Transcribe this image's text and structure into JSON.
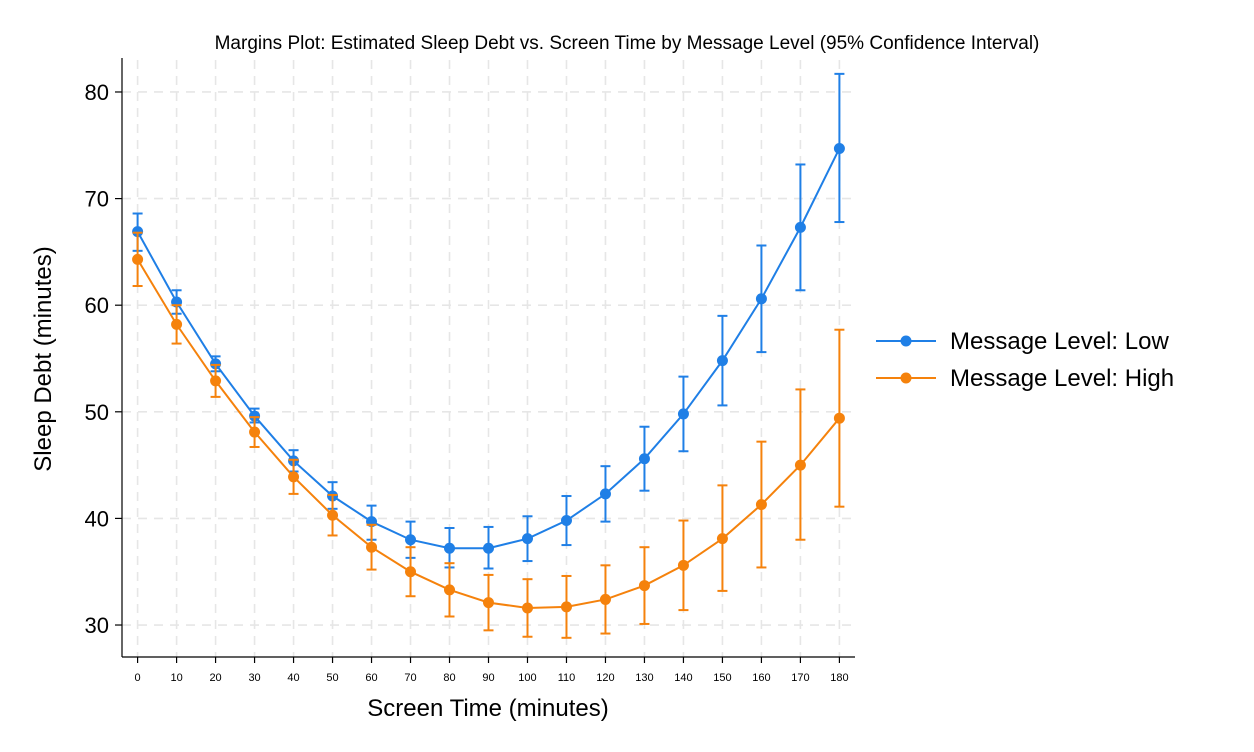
{
  "chart_data": {
    "type": "line",
    "title": "Margins Plot: Estimated Sleep Debt vs. Screen Time by Message Level (95% Confidence Interval)",
    "xlabel": "Screen Time (minutes)",
    "ylabel": "Sleep Debt (minutes)",
    "x": [
      0,
      10,
      20,
      30,
      40,
      50,
      60,
      70,
      80,
      90,
      100,
      110,
      120,
      130,
      140,
      150,
      160,
      170,
      180
    ],
    "xlim": [
      -4,
      184
    ],
    "ylim": [
      27,
      83
    ],
    "yticks": [
      30,
      40,
      50,
      60,
      70,
      80
    ],
    "grid": true,
    "legend_position": "right",
    "series": [
      {
        "name": "Message Level: Low",
        "color": "#1f7fe6",
        "values": [
          66.9,
          60.3,
          54.5,
          49.6,
          45.4,
          42.1,
          39.7,
          38.0,
          37.2,
          37.2,
          38.1,
          39.8,
          42.3,
          45.6,
          49.8,
          54.8,
          60.6,
          67.3,
          74.7
        ],
        "lower": [
          65.1,
          59.2,
          53.8,
          49.0,
          44.4,
          40.9,
          38.0,
          36.3,
          35.4,
          35.3,
          36.0,
          37.5,
          39.7,
          42.6,
          46.3,
          50.6,
          55.6,
          61.4,
          67.8
        ],
        "upper": [
          68.6,
          61.4,
          55.2,
          50.3,
          46.4,
          43.4,
          41.2,
          39.7,
          39.1,
          39.2,
          40.2,
          42.1,
          44.9,
          48.6,
          53.3,
          59.0,
          65.6,
          73.2,
          81.7
        ]
      },
      {
        "name": "Message Level: High",
        "color": "#f5820c",
        "values": [
          64.3,
          58.2,
          52.9,
          48.1,
          43.9,
          40.3,
          37.3,
          35.0,
          33.3,
          32.1,
          31.6,
          31.7,
          32.4,
          33.7,
          35.6,
          38.1,
          41.3,
          45.0,
          49.4
        ],
        "lower": [
          61.8,
          56.4,
          51.4,
          46.7,
          42.3,
          38.4,
          35.2,
          32.7,
          30.8,
          29.5,
          28.9,
          28.8,
          29.2,
          30.1,
          31.4,
          33.2,
          35.4,
          38.0,
          41.1
        ],
        "upper": [
          66.8,
          60.0,
          54.4,
          49.5,
          45.5,
          42.2,
          39.4,
          37.3,
          35.8,
          34.7,
          34.3,
          34.6,
          35.6,
          37.3,
          39.8,
          43.1,
          47.2,
          52.1,
          57.7
        ]
      }
    ]
  }
}
